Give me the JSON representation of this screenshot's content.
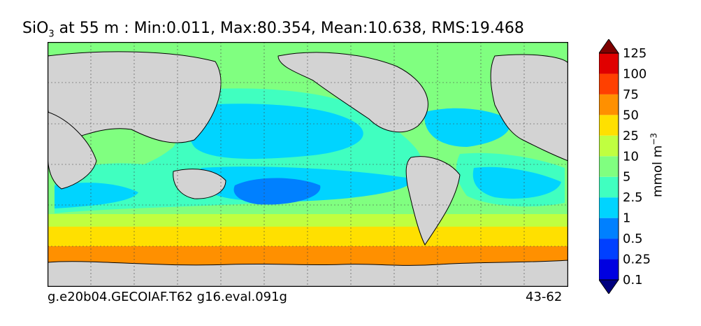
{
  "header": {
    "title_prefix": "SiO",
    "title_sub": "3",
    "title_rest": " at 55 m : Min:0.011, Max:80.354, Mean:10.638, RMS:19.468"
  },
  "footer": {
    "left": "g.e20b04.GECOIAF.T62 g16.eval.091g",
    "right": "43-62"
  },
  "chart_data": {
    "type": "heatmap",
    "variable": "SiO3",
    "depth_m": 55,
    "stats": {
      "min": 0.011,
      "max": 80.354,
      "mean": 10.638,
      "rms": 19.468
    },
    "colorbar": {
      "label": "mmol m^-3",
      "levels": [
        "0.1",
        "0.25",
        "0.5",
        "1",
        "2.5",
        "5",
        "10",
        "25",
        "50",
        "75",
        "100",
        "125"
      ],
      "colors": [
        "#00007f",
        "#0000e0",
        "#0040ff",
        "#0080ff",
        "#00d4ff",
        "#40ffc0",
        "#80ff80",
        "#c0ff40",
        "#ffe000",
        "#ff9000",
        "#ff4000",
        "#e00000",
        "#7f0000"
      ],
      "extend": "both"
    },
    "land_color": "#d3d3d3",
    "grid": true
  }
}
